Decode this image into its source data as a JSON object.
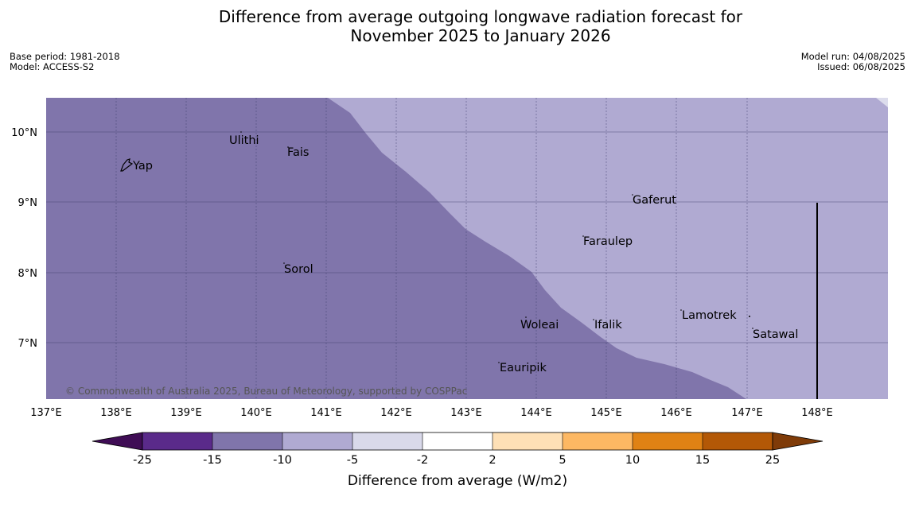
{
  "title_line1": "Difference from average outgoing longwave radiation forecast for",
  "title_line2": "November 2025 to January 2026",
  "base_period": "Base period: 1981-2018",
  "model": "Model: ACCESS-S2",
  "model_run": "Model run: 04/08/2025",
  "issued": "Issued: 06/08/2025",
  "copyright": "© Commonwealth of Australia 2025, Bureau of Meteorology, supported by COSPPac",
  "colors": {
    "minus_15_to_10": "#8075ab",
    "minus_10_to_5": "#b0aad2",
    "border": "#dcdcec"
  },
  "lat_labels": [
    "10°N",
    "9°N",
    "8°N",
    "7°N"
  ],
  "lon_labels": [
    "137°E",
    "138°E",
    "139°E",
    "140°E",
    "141°E",
    "142°E",
    "143°E",
    "144°E",
    "145°E",
    "146°E",
    "147°E",
    "148°E"
  ],
  "places": {
    "yap": "Yap",
    "ulithi": "Ulithi",
    "fais": "Fais",
    "gaferut": "Gaferut",
    "faraulep": "Faraulep",
    "sorol": "Sorol",
    "lamotrek": "Lamotrek",
    "woleai": "Woleai",
    "ifalik": "Ifalik",
    "satawal": "Satawal",
    "eauripik": "Eauripik"
  },
  "colorbar": {
    "title": "Difference from average (W/m2)",
    "ticks": [
      "-25",
      "-15",
      "-10",
      "-5",
      "-2",
      "2",
      "5",
      "10",
      "15",
      "25"
    ],
    "colors": [
      "#3f0d55",
      "#5a2a8a",
      "#8075ab",
      "#b0aad2",
      "#d9d9ea",
      "#ffffff",
      "#fee0b6",
      "#fdb863",
      "#e08214",
      "#b35806",
      "#7f3b08"
    ]
  }
}
